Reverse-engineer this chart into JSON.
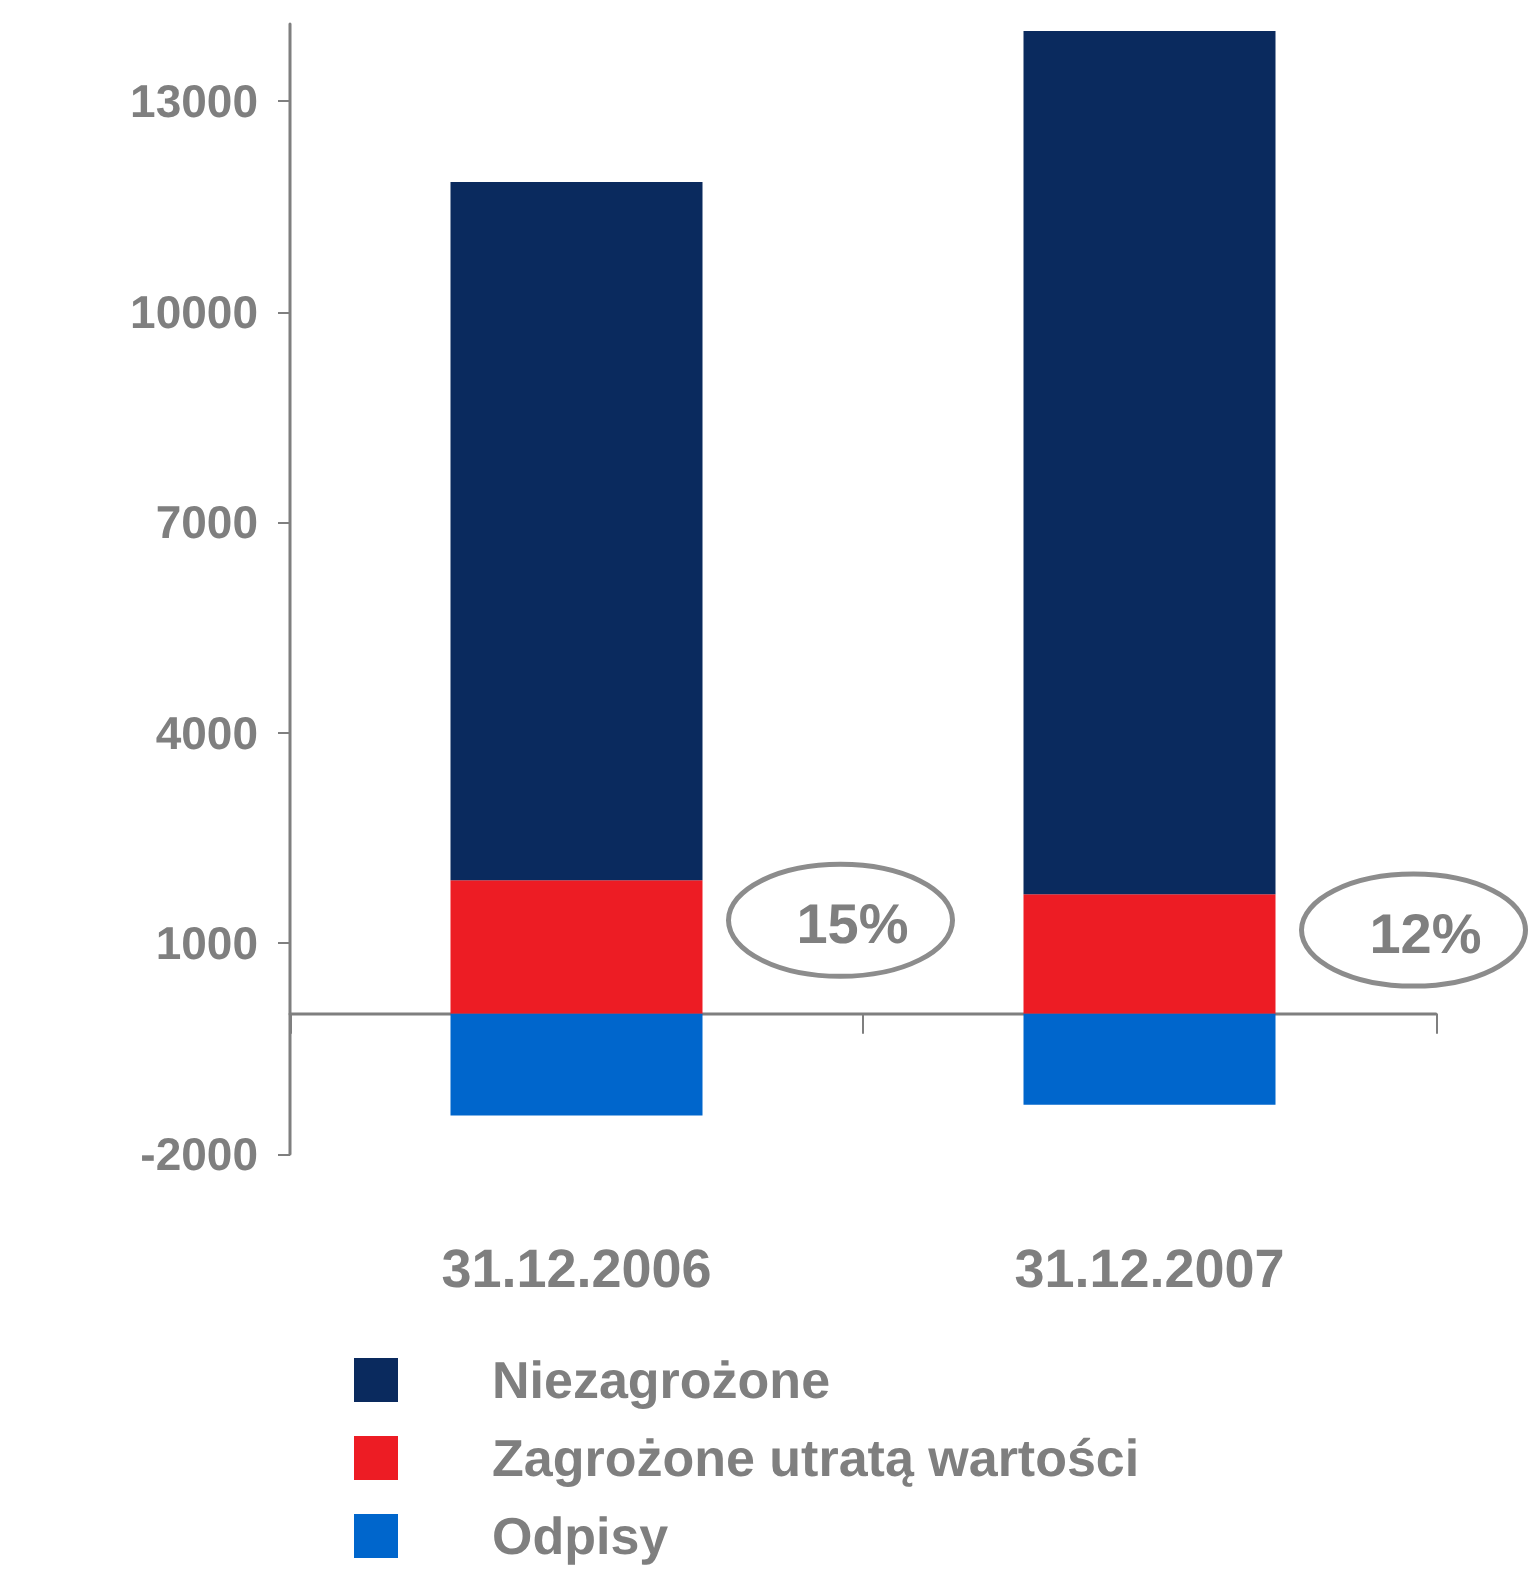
{
  "chart_data": {
    "type": "bar",
    "stacked": true,
    "categories": [
      "31.12.2006",
      "31.12.2007"
    ],
    "series": [
      {
        "name": "Zagrożone utratą wartości",
        "color": "#ed1c24",
        "values": [
          1900,
          1700
        ]
      },
      {
        "name": "Niezagrożone",
        "color": "#0a2a5e",
        "values": [
          9950,
          12300
        ]
      },
      {
        "name": "Odpisy",
        "color": "#0066cc",
        "values": [
          -1450,
          -1300
        ]
      }
    ],
    "ylim": [
      -2000,
      14100
    ],
    "yticks": [
      -2000,
      1000,
      4000,
      7000,
      10000,
      13000
    ],
    "annotations": [
      "15%",
      "12%"
    ],
    "grid": false,
    "legend": "bottom"
  }
}
